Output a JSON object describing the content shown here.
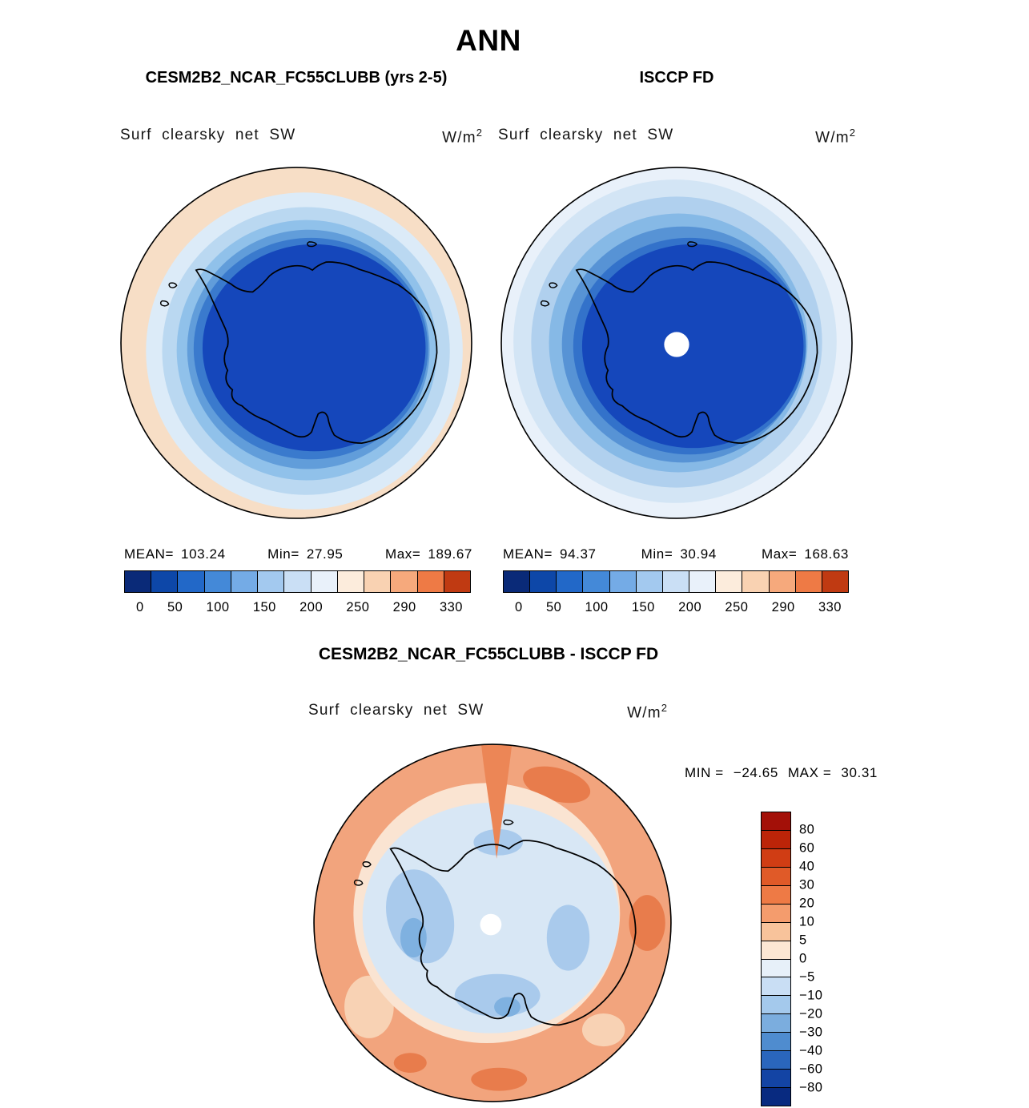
{
  "title": "ANN",
  "panels": {
    "model": {
      "header": "CESM2B2_NCAR_FC55CLUBB (yrs 2-5)",
      "field_label": "Surf clearsky net SW",
      "units_base": "W/m",
      "units_exp": "2",
      "mean_label": "MEAN=",
      "mean": "103.24",
      "min_label": "Min=",
      "min": "27.95",
      "max_label": "Max=",
      "max": "189.67",
      "ticks": [
        "0",
        "50",
        "100",
        "150",
        "200",
        "250",
        "290",
        "330"
      ]
    },
    "obs": {
      "header": "ISCCP FD",
      "field_label": "Surf clearsky net SW",
      "units_base": "W/m",
      "units_exp": "2",
      "mean_label": "MEAN=",
      "mean": "94.37",
      "min_label": "Min=",
      "min": "30.94",
      "max_label": "Max=",
      "max": "168.63",
      "ticks": [
        "0",
        "50",
        "100",
        "150",
        "200",
        "250",
        "290",
        "330"
      ]
    }
  },
  "diff": {
    "header": "CESM2B2_NCAR_FC55CLUBB - ISCCP FD",
    "field_label": "Surf clearsky net SW",
    "units_base": "W/m",
    "units_exp": "2",
    "min_label": "MIN =",
    "min": "−24.65",
    "max_label": "MAX =",
    "max": "30.31",
    "ticks": [
      "80",
      "60",
      "40",
      "30",
      "20",
      "10",
      "5",
      "0",
      "−5",
      "−10",
      "−20",
      "−30",
      "−40",
      "−60",
      "−80"
    ]
  },
  "colors": {
    "full_scale": [
      "#0a2a78",
      "#0d47a8",
      "#2268c8",
      "#4489d8",
      "#74abe6",
      "#a3c9ef",
      "#cadff5",
      "#e9f1fa",
      "#fcecdc",
      "#f9d2b2",
      "#f6a97c",
      "#ee7a45",
      "#c03a12"
    ],
    "diff_scale": [
      "#a31008",
      "#bc2408",
      "#d03d14",
      "#e05a28",
      "#ee7a45",
      "#f49c6d",
      "#f8c39b",
      "#fce7d3",
      "#e7f0f9",
      "#c9def4",
      "#a4c9ec",
      "#7badde",
      "#4f8ccf",
      "#2a66bd",
      "#1344a4",
      "#082a80"
    ]
  },
  "chart_data": [
    {
      "type": "heatmap",
      "title": "CESM2B2_NCAR_FC55CLUBB (yrs 2-5)",
      "season": "ANN",
      "variable": "Surf clearsky net SW",
      "units": "W/m^2",
      "projection": "south polar stereographic (Antarctica)",
      "mean": 103.24,
      "min": 27.95,
      "max": 189.67,
      "levels": [
        0,
        50,
        100,
        150,
        200,
        250,
        290,
        330
      ],
      "palette": "blue(low)-to-red(high)",
      "legend_position": "bottom"
    },
    {
      "type": "heatmap",
      "title": "ISCCP FD",
      "season": "ANN",
      "variable": "Surf clearsky net SW",
      "units": "W/m^2",
      "projection": "south polar stereographic (Antarctica)",
      "mean": 94.37,
      "min": 30.94,
      "max": 168.63,
      "levels": [
        0,
        50,
        100,
        150,
        200,
        250,
        290,
        330
      ],
      "palette": "blue(low)-to-red(high)",
      "legend_position": "bottom",
      "notes": "missing data hole at pole"
    },
    {
      "type": "heatmap",
      "title": "CESM2B2_NCAR_FC55CLUBB - ISCCP FD",
      "season": "ANN",
      "variable": "Surf clearsky net SW difference",
      "units": "W/m^2",
      "projection": "south polar stereographic (Antarctica)",
      "min": -24.65,
      "max": 30.31,
      "levels": [
        -80,
        -60,
        -40,
        -30,
        -20,
        -10,
        -5,
        0,
        5,
        10,
        20,
        30,
        40,
        60,
        80
      ],
      "palette": "blue(negative)-to-red(positive)",
      "legend_position": "right",
      "notes": "ocean ring mostly positive (orange), continent interior mostly weakly negative (pale blue)"
    }
  ]
}
